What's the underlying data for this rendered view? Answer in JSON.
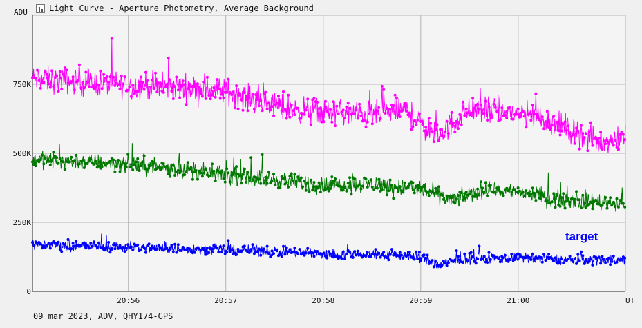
{
  "title": "Light Curve - Aperture Photometry, Average Background",
  "footer": "09 mar 2023, ADV, QHY174-GPS",
  "colors": {
    "background": "#f0f0f0",
    "plot_background": "#f4f4f4",
    "grid": "#b4b4b4",
    "series_top": "#ff00ff",
    "series_middle": "#007800",
    "series_target": "#0000ff"
  },
  "chart_data": {
    "type": "line",
    "title": "Light Curve - Aperture Photometry, Average Background",
    "xlabel": "UT",
    "ylabel": "ADU",
    "x_ticks": [
      "20:56",
      "20:57",
      "20:58",
      "20:59",
      "21:00"
    ],
    "y_ticks": [
      "0",
      "250K",
      "500K",
      "750K"
    ],
    "xlim": [
      "20:55:01",
      "21:01:06"
    ],
    "ylim": [
      0,
      1000000
    ],
    "grid": true,
    "legend": "none",
    "series": [
      {
        "name": "",
        "color": "#ff00ff",
        "x": [
          "20:55:00",
          "20:55:30",
          "20:56:00",
          "20:56:30",
          "20:57:00",
          "20:57:20",
          "20:57:40",
          "20:58:00",
          "20:58:30",
          "20:58:50",
          "20:59:10",
          "20:59:30",
          "20:59:50",
          "21:00:10",
          "21:00:30",
          "21:00:50",
          "21:01:05"
        ],
        "values": [
          770000,
          760000,
          745000,
          740000,
          725000,
          690000,
          660000,
          650000,
          640000,
          660000,
          560000,
          660000,
          650000,
          640000,
          590000,
          540000,
          560000
        ]
      },
      {
        "name": "",
        "color": "#007800",
        "x": [
          "20:55:00",
          "20:55:30",
          "20:56:00",
          "20:56:30",
          "20:57:00",
          "20:57:30",
          "20:58:00",
          "20:58:30",
          "20:59:00",
          "20:59:20",
          "20:59:40",
          "21:00:00",
          "21:00:30",
          "21:01:05"
        ],
        "values": [
          480000,
          470000,
          460000,
          445000,
          420000,
          405000,
          385000,
          390000,
          370000,
          330000,
          370000,
          360000,
          330000,
          320000
        ]
      },
      {
        "name": "target",
        "color": "#0000ff",
        "x": [
          "20:55:00",
          "20:55:30",
          "20:56:00",
          "20:56:30",
          "20:57:00",
          "20:57:30",
          "20:58:00",
          "20:58:30",
          "20:59:00",
          "20:59:10",
          "20:59:30",
          "21:00:00",
          "21:00:30",
          "21:01:05"
        ],
        "values": [
          170000,
          165000,
          160000,
          155000,
          150000,
          145000,
          135000,
          135000,
          125000,
          95000,
          120000,
          120000,
          115000,
          115000
        ]
      }
    ],
    "annotation": "target"
  }
}
